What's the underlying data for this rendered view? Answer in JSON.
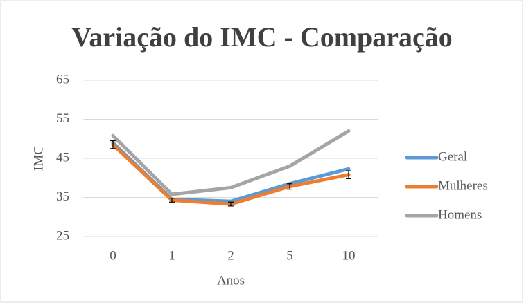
{
  "chart_data": {
    "type": "line",
    "title": "Variação do IMC - Comparação",
    "x_label": "Anos",
    "y_label": "IMC",
    "categories": [
      "0",
      "1",
      "2",
      "5",
      "10"
    ],
    "series": [
      {
        "name": "Geral",
        "color": "#5b9bd5",
        "values": [
          49,
          34.5,
          34,
          38.5,
          42.3
        ]
      },
      {
        "name": "Mulheres",
        "color": "#ed7d31",
        "values": [
          48.5,
          34.3,
          33.3,
          37.8,
          40.8
        ],
        "errors": [
          1,
          0.5,
          0.5,
          0.7,
          1
        ]
      },
      {
        "name": "Homens",
        "color": "#a5a5a5",
        "values": [
          50.8,
          35.8,
          37.5,
          43,
          52
        ]
      }
    ],
    "ylim": [
      25,
      65
    ],
    "yticks": [
      25,
      35,
      45,
      55,
      65
    ],
    "grid": true,
    "legend": "right"
  }
}
